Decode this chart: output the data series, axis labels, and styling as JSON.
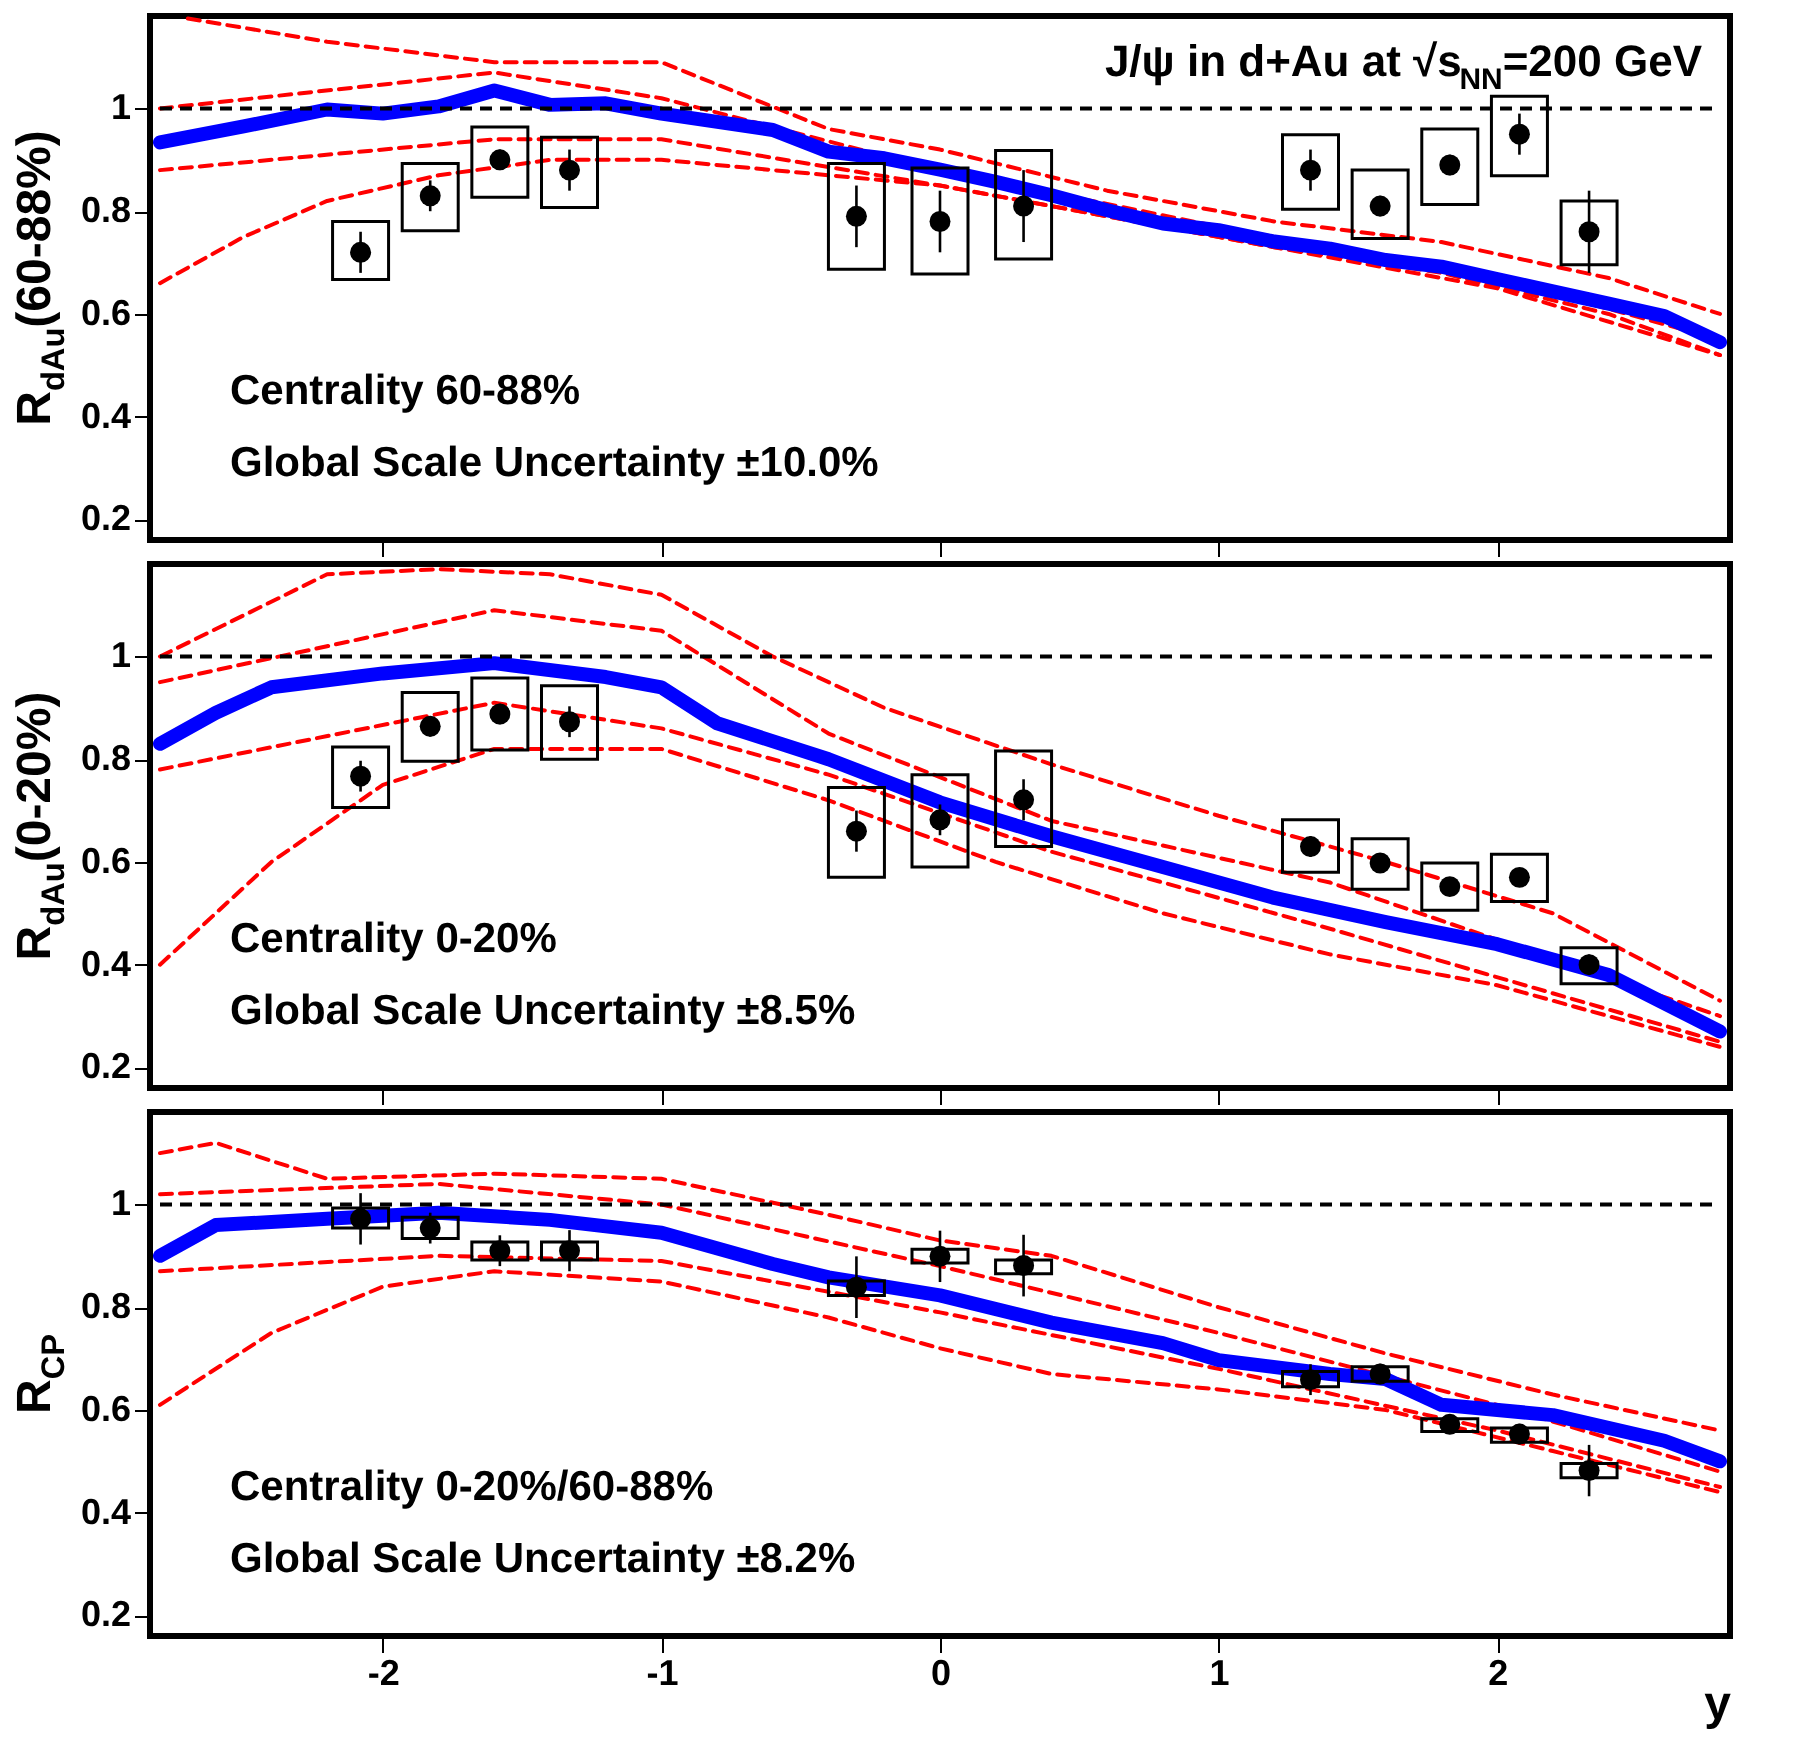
{
  "chart_data": [
    {
      "type": "scatter",
      "title": "J/ψ in d+Au at √s$_{NN}$=200 GeV",
      "ylabel": "R$_{dAu}$(60-88%)",
      "xlim": [
        -2.8,
        2.8
      ],
      "xticks": [
        -2,
        -1,
        0,
        1,
        2
      ],
      "ylim": [
        0.16,
        1.18
      ],
      "yticks": [
        0.2,
        0.4,
        0.6,
        0.8,
        1
      ],
      "tick_labels": "y",
      "annotations": [
        "Centrality 60-88%",
        "Global Scale Uncertainty ±10.0%"
      ],
      "ref_lines": [
        {
          "axis": "y",
          "value": 1,
          "color": "#000000",
          "line_style": "dashed"
        }
      ],
      "series": [
        {
          "type": "line",
          "color": "#ff0000",
          "line_style": "dashed",
          "x": [
            -2.7,
            -2.2,
            -1.6,
            -1.0,
            -0.4,
            0,
            0.6,
            1.2,
            1.8,
            2.4,
            2.8
          ],
          "values": [
            1.175,
            1.13,
            1.09,
            1.09,
            0.96,
            0.92,
            0.84,
            0.78,
            0.74,
            0.67,
            0.6
          ]
        },
        {
          "type": "line",
          "color": "#ff0000",
          "line_style": "dashed",
          "x": [
            -2.8,
            -2.5,
            -2.2,
            -1.8,
            -1.4,
            -1.0,
            0,
            0.6,
            1.2,
            1.8,
            2.4,
            2.8
          ],
          "values": [
            0.66,
            0.75,
            0.82,
            0.87,
            0.9,
            0.9,
            0.85,
            0.79,
            0.73,
            0.68,
            0.6,
            0.52
          ]
        },
        {
          "type": "line",
          "color": "#ff0000",
          "line_style": "dashed",
          "x": [
            -2.8,
            -1.6,
            -1.0,
            0,
            1.0,
            2.0,
            2.8
          ],
          "values": [
            1.0,
            1.07,
            1.02,
            0.88,
            0.77,
            0.67,
            0.55
          ]
        },
        {
          "type": "line",
          "color": "#ff0000",
          "line_style": "dashed",
          "x": [
            -2.8,
            -1.6,
            -1.0,
            0,
            1.0,
            2.0,
            2.8
          ],
          "values": [
            0.88,
            0.94,
            0.94,
            0.85,
            0.75,
            0.65,
            0.52
          ]
        },
        {
          "type": "line",
          "color": "#0000ff",
          "x": [
            -2.8,
            -2.5,
            -2.2,
            -2.0,
            -1.8,
            -1.6,
            -1.4,
            -1.2,
            -1.0,
            -0.6,
            -0.4,
            -0.2,
            0,
            0.2,
            0.4,
            0.6,
            0.8,
            1.0,
            1.2,
            1.4,
            1.6,
            1.8,
            2.0,
            2.2,
            2.4,
            2.6,
            2.8
          ],
          "values": [
            0.934,
            0.965,
            0.998,
            0.99,
            1.004,
            1.035,
            1.007,
            1.01,
            0.99,
            0.958,
            0.916,
            0.903,
            0.881,
            0.857,
            0.831,
            0.802,
            0.776,
            0.763,
            0.741,
            0.727,
            0.705,
            0.692,
            0.668,
            0.644,
            0.62,
            0.596,
            0.545
          ]
        },
        {
          "type": "bar",
          "color": "#000000",
          "x": [
            -2.08,
            -1.83,
            -1.58,
            -1.33,
            -0.3,
            0,
            0.3,
            1.33,
            1.58,
            1.83,
            2.08,
            2.33
          ],
          "base": [
            0.667,
            0.762,
            0.827,
            0.807,
            0.687,
            0.678,
            0.707,
            0.804,
            0.747,
            0.813,
            0.869,
            0.696
          ],
          "values": [
            0.113,
            0.131,
            0.137,
            0.137,
            0.206,
            0.206,
            0.211,
            0.145,
            0.133,
            0.147,
            0.155,
            0.124
          ]
        },
        {
          "marker": "circle",
          "color": "#000000",
          "x": [
            -2.08,
            -1.83,
            -1.58,
            -1.33,
            -0.3,
            0,
            0.3,
            1.33,
            1.58,
            1.83,
            2.08,
            2.33
          ],
          "values": [
            0.72,
            0.83,
            0.9,
            0.88,
            0.79,
            0.78,
            0.81,
            0.88,
            0.81,
            0.89,
            0.95,
            0.76
          ],
          "errors": [
            0.04,
            0.03,
            0.02,
            0.04,
            0.06,
            0.06,
            0.07,
            0.04,
            0.02,
            0.02,
            0.04,
            0.08
          ]
        }
      ]
    },
    {
      "type": "scatter",
      "ylabel": "R$_{dAu}$(0-20%)",
      "xlim": [
        -2.8,
        2.8
      ],
      "xticks": [
        -2,
        -1,
        0,
        1,
        2
      ],
      "ylim": [
        0.16,
        1.18
      ],
      "yticks": [
        0.2,
        0.4,
        0.6,
        0.8,
        1
      ],
      "tick_labels": "y",
      "annotations": [
        "Centrality 0-20%",
        "Global Scale Uncertainty ±8.5%"
      ],
      "ref_lines": [
        {
          "axis": "y",
          "value": 1,
          "color": "#000000",
          "line_style": "dashed"
        }
      ],
      "series": [
        {
          "type": "line",
          "color": "#ff0000",
          "line_style": "dashed",
          "x": [
            -2.8,
            -2.2,
            -1.8,
            -1.4,
            -1.0,
            -0.6,
            -0.2,
            0.4,
            1.0,
            1.6,
            2.2,
            2.8
          ],
          "values": [
            1.0,
            1.16,
            1.17,
            1.16,
            1.12,
            1.0,
            0.9,
            0.79,
            0.69,
            0.6,
            0.5,
            0.33
          ]
        },
        {
          "type": "line",
          "color": "#ff0000",
          "line_style": "dashed",
          "x": [
            -2.8,
            -2.4,
            -2.0,
            -1.6,
            -1.0,
            -0.4,
            0.2,
            0.8,
            1.4,
            2.0,
            2.8
          ],
          "values": [
            0.4,
            0.6,
            0.75,
            0.82,
            0.82,
            0.72,
            0.6,
            0.5,
            0.42,
            0.36,
            0.24
          ]
        },
        {
          "type": "line",
          "color": "#ff0000",
          "line_style": "dashed",
          "x": [
            -2.8,
            -1.6,
            -1.0,
            -0.4,
            0.4,
            1.4,
            2.8
          ],
          "values": [
            0.95,
            1.09,
            1.05,
            0.85,
            0.68,
            0.56,
            0.3
          ]
        },
        {
          "type": "line",
          "color": "#ff0000",
          "line_style": "dashed",
          "x": [
            -2.8,
            -1.6,
            -1.0,
            -0.4,
            0.4,
            1.4,
            2.8
          ],
          "values": [
            0.78,
            0.91,
            0.86,
            0.77,
            0.62,
            0.47,
            0.25
          ]
        },
        {
          "type": "line",
          "color": "#0000ff",
          "x": [
            -2.8,
            -2.6,
            -2.4,
            -2.0,
            -1.6,
            -1.2,
            -1.0,
            -0.8,
            -0.4,
            0,
            0.4,
            0.8,
            1.2,
            1.6,
            2.0,
            2.4,
            2.8
          ],
          "values": [
            0.83,
            0.89,
            0.94,
            0.967,
            0.987,
            0.96,
            0.94,
            0.87,
            0.8,
            0.716,
            0.65,
            0.59,
            0.53,
            0.483,
            0.44,
            0.38,
            0.27
          ]
        },
        {
          "type": "bar",
          "color": "#000000",
          "x": [
            -2.08,
            -1.83,
            -1.58,
            -1.33,
            -0.3,
            0,
            0.3,
            1.33,
            1.58,
            1.83,
            2.08,
            2.33
          ],
          "base": [
            0.706,
            0.796,
            0.818,
            0.8,
            0.57,
            0.59,
            0.63,
            0.58,
            0.547,
            0.506,
            0.523,
            0.363
          ],
          "values": [
            0.118,
            0.134,
            0.14,
            0.143,
            0.175,
            0.18,
            0.186,
            0.102,
            0.098,
            0.092,
            0.092,
            0.07
          ]
        },
        {
          "marker": "circle",
          "color": "#000000",
          "x": [
            -2.08,
            -1.83,
            -1.58,
            -1.33,
            -0.3,
            0,
            0.3,
            1.33,
            1.58,
            1.83,
            2.08,
            2.33
          ],
          "values": [
            0.767,
            0.864,
            0.888,
            0.873,
            0.66,
            0.682,
            0.721,
            0.63,
            0.598,
            0.552,
            0.57,
            0.4
          ],
          "errors": [
            0.03,
            0.02,
            0.02,
            0.03,
            0.04,
            0.03,
            0.04,
            0.02,
            0.01,
            0.01,
            0.01,
            0.02
          ]
        }
      ]
    },
    {
      "type": "scatter",
      "ylabel": "R$_{CP}$",
      "xlabel": "y",
      "xlim": [
        -2.8,
        2.8
      ],
      "xticks": [
        -2,
        -1,
        0,
        1,
        2
      ],
      "ylim": [
        0.16,
        1.18
      ],
      "yticks": [
        0.2,
        0.4,
        0.6,
        0.8,
        1
      ],
      "annotations": [
        "Centrality 0-20%/60-88%",
        "Global Scale Uncertainty ±8.2%"
      ],
      "ref_lines": [
        {
          "axis": "y",
          "value": 1,
          "color": "#000000",
          "line_style": "dashed"
        }
      ],
      "series": [
        {
          "type": "line",
          "color": "#ff0000",
          "line_style": "dashed",
          "x": [
            -2.8,
            -2.6,
            -2.2,
            -1.6,
            -1.0,
            -0.4,
            0,
            0.4,
            1.0,
            1.6,
            2.2,
            2.8
          ],
          "values": [
            1.1,
            1.12,
            1.05,
            1.06,
            1.05,
            0.98,
            0.93,
            0.9,
            0.8,
            0.71,
            0.63,
            0.56
          ]
        },
        {
          "type": "line",
          "color": "#ff0000",
          "line_style": "dashed",
          "x": [
            -2.8,
            -2.4,
            -2.0,
            -1.6,
            -1.0,
            -0.4,
            0,
            0.4,
            1.0,
            1.6,
            2.2,
            2.8
          ],
          "values": [
            0.61,
            0.75,
            0.84,
            0.87,
            0.85,
            0.78,
            0.72,
            0.67,
            0.64,
            0.6,
            0.52,
            0.44
          ]
        },
        {
          "type": "line",
          "color": "#ff0000",
          "line_style": "dashed",
          "x": [
            -2.8,
            -1.8,
            -1.0,
            0,
            1.0,
            2.0,
            2.8
          ],
          "values": [
            1.02,
            1.04,
            1.0,
            0.88,
            0.75,
            0.61,
            0.48
          ]
        },
        {
          "type": "line",
          "color": "#ff0000",
          "line_style": "dashed",
          "x": [
            -2.8,
            -1.8,
            -1.0,
            0,
            1.0,
            2.0,
            2.8
          ],
          "values": [
            0.87,
            0.9,
            0.89,
            0.79,
            0.68,
            0.56,
            0.45
          ]
        },
        {
          "type": "line",
          "color": "#0000ff",
          "x": [
            -2.8,
            -2.6,
            -2.2,
            -1.8,
            -1.4,
            -1.0,
            -0.6,
            -0.4,
            0,
            0.4,
            0.8,
            1.0,
            1.4,
            1.6,
            1.8,
            2.2,
            2.6,
            2.8
          ],
          "values": [
            0.9,
            0.96,
            0.972,
            0.984,
            0.97,
            0.945,
            0.884,
            0.858,
            0.823,
            0.77,
            0.73,
            0.697,
            0.67,
            0.66,
            0.61,
            0.59,
            0.54,
            0.5
          ]
        },
        {
          "type": "bar",
          "color": "#000000",
          "x": [
            -2.08,
            -1.83,
            -1.58,
            -1.33,
            -0.3,
            0,
            0.3,
            1.33,
            1.58,
            1.83,
            2.08,
            2.33
          ],
          "base": [
            0.954,
            0.934,
            0.892,
            0.892,
            0.823,
            0.886,
            0.865,
            0.645,
            0.656,
            0.558,
            0.537,
            0.468
          ],
          "values": [
            0.039,
            0.041,
            0.035,
            0.035,
            0.028,
            0.027,
            0.027,
            0.03,
            0.028,
            0.025,
            0.028,
            0.028
          ]
        },
        {
          "marker": "circle",
          "color": "#000000",
          "x": [
            -2.08,
            -1.83,
            -1.58,
            -1.33,
            -0.3,
            0,
            0.3,
            1.33,
            1.58,
            1.83,
            2.08,
            2.33
          ],
          "values": [
            0.972,
            0.954,
            0.91,
            0.91,
            0.839,
            0.899,
            0.881,
            0.659,
            0.67,
            0.572,
            0.553,
            0.482
          ],
          "errors": [
            0.05,
            0.03,
            0.03,
            0.04,
            0.06,
            0.05,
            0.06,
            0.03,
            0.02,
            0.01,
            0.02,
            0.05
          ]
        }
      ]
    }
  ]
}
